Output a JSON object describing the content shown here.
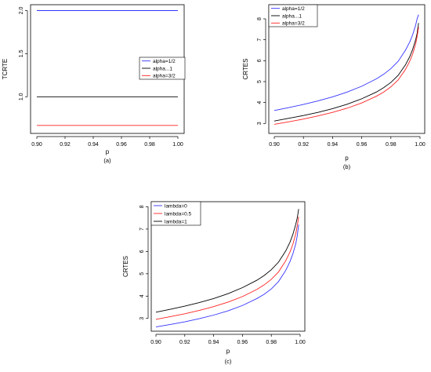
{
  "chart_data": [
    {
      "id": "a",
      "type": "line",
      "caption": "(a)",
      "xlabel": "p",
      "ylabel": "TCRTE",
      "xlim": [
        0.9,
        1.0
      ],
      "ylim": [
        0.62,
        2.05
      ],
      "x_ticks": [
        0.9,
        0.92,
        0.94,
        0.96,
        0.98,
        1.0
      ],
      "x_tick_labels": [
        "0.90",
        "0.92",
        "0.94",
        "0.96",
        "0.98",
        "1.00"
      ],
      "y_ticks": [
        1.0,
        1.5,
        2.0
      ],
      "y_tick_labels": [
        "1.0",
        "1.5",
        "2.0"
      ],
      "legend_position": "right",
      "x": [
        0.9,
        1.0
      ],
      "series": [
        {
          "name": "alpha=1/2",
          "color": "#3333ff",
          "values": [
            2.0,
            2.0
          ]
        },
        {
          "name": "alpha...1",
          "color": "#000000",
          "values": [
            1.0,
            1.0
          ]
        },
        {
          "name": "alpha=3/2",
          "color": "#ff2222",
          "values": [
            0.667,
            0.667
          ]
        }
      ]
    },
    {
      "id": "b",
      "type": "line",
      "caption": "(b)",
      "xlabel": "p",
      "ylabel": "CRTES",
      "xlim": [
        0.9,
        1.0
      ],
      "ylim": [
        2.6,
        8.6
      ],
      "x_ticks": [
        0.9,
        0.92,
        0.94,
        0.96,
        0.98,
        1.0
      ],
      "x_tick_labels": [
        "0.90",
        "0.92",
        "0.94",
        "0.96",
        "0.98",
        "1.00"
      ],
      "y_ticks": [
        3,
        4,
        5,
        6,
        7,
        8
      ],
      "y_tick_labels": [
        "3",
        "4",
        "5",
        "6",
        "7",
        "8"
      ],
      "legend_position": "top-left",
      "x": [
        0.9,
        0.91,
        0.92,
        0.93,
        0.94,
        0.95,
        0.96,
        0.97,
        0.975,
        0.98,
        0.985,
        0.99,
        0.993,
        0.995,
        0.997,
        0.998,
        0.999
      ],
      "series": [
        {
          "name": "alpha=1/2",
          "color": "#3333ff",
          "values": [
            3.62,
            3.76,
            3.91,
            4.08,
            4.27,
            4.5,
            4.78,
            5.13,
            5.35,
            5.62,
            5.97,
            6.5,
            6.9,
            7.25,
            7.7,
            8.0,
            8.2
          ]
        },
        {
          "name": "alpha...1",
          "color": "#000000",
          "values": [
            3.12,
            3.25,
            3.38,
            3.53,
            3.71,
            3.92,
            4.18,
            4.5,
            4.71,
            4.96,
            5.3,
            5.8,
            6.2,
            6.55,
            7.0,
            7.3,
            7.8
          ]
        },
        {
          "name": "alpha=3/2",
          "color": "#ff2222",
          "values": [
            2.96,
            3.08,
            3.21,
            3.36,
            3.53,
            3.73,
            3.98,
            4.3,
            4.5,
            4.75,
            5.08,
            5.58,
            5.98,
            6.33,
            6.8,
            7.15,
            7.6
          ]
        }
      ]
    },
    {
      "id": "c",
      "type": "line",
      "caption": "(c)",
      "xlabel": "p",
      "ylabel": "CRTES",
      "xlim": [
        0.9,
        1.0
      ],
      "ylim": [
        2.5,
        8.05
      ],
      "x_ticks": [
        0.9,
        0.92,
        0.94,
        0.96,
        0.98,
        1.0
      ],
      "x_tick_labels": [
        "0.90",
        "0.92",
        "0.94",
        "0.96",
        "0.98",
        "1.00"
      ],
      "y_ticks": [
        3,
        4,
        5,
        6,
        7,
        8
      ],
      "y_tick_labels": [
        "3",
        "4",
        "5",
        "6",
        "7",
        "8"
      ],
      "legend_position": "top-left",
      "x": [
        0.9,
        0.91,
        0.92,
        0.93,
        0.94,
        0.95,
        0.96,
        0.97,
        0.975,
        0.98,
        0.985,
        0.99,
        0.993,
        0.995,
        0.997,
        0.998,
        0.999
      ],
      "series": [
        {
          "name": "lambda=0",
          "color": "#3333ff",
          "values": [
            2.62,
            2.73,
            2.85,
            2.99,
            3.15,
            3.34,
            3.58,
            3.89,
            4.08,
            4.32,
            4.65,
            5.15,
            5.55,
            5.9,
            6.35,
            6.7,
            7.2
          ]
        },
        {
          "name": "lambda=0.5",
          "color": "#ff2222",
          "values": [
            2.96,
            3.08,
            3.21,
            3.36,
            3.53,
            3.73,
            3.98,
            4.3,
            4.5,
            4.75,
            5.08,
            5.58,
            5.98,
            6.33,
            6.8,
            7.15,
            7.55
          ]
        },
        {
          "name": "lambda=1",
          "color": "#000000",
          "values": [
            3.28,
            3.41,
            3.55,
            3.71,
            3.89,
            4.11,
            4.38,
            4.71,
            4.92,
            5.18,
            5.52,
            6.02,
            6.42,
            6.77,
            7.22,
            7.5,
            7.9
          ]
        }
      ]
    }
  ]
}
